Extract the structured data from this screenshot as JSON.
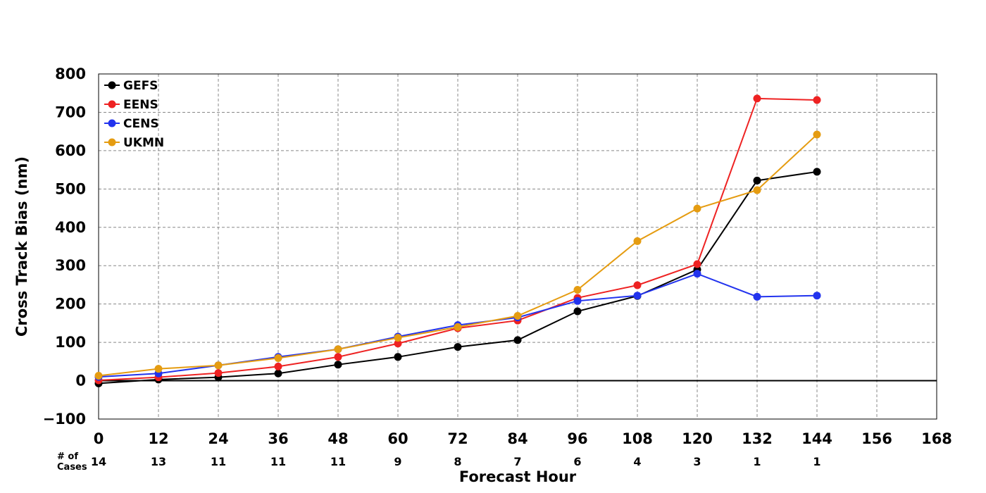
{
  "chart_data": {
    "type": "line",
    "title": "",
    "xlabel": "Forecast Hour",
    "ylabel": "Cross Track Bias (nm)",
    "xlim": [
      0,
      168
    ],
    "ylim": [
      -100,
      800
    ],
    "x_ticks": [
      0,
      12,
      24,
      36,
      48,
      60,
      72,
      84,
      96,
      108,
      120,
      132,
      144,
      156,
      168
    ],
    "y_ticks": [
      -100,
      0,
      100,
      200,
      300,
      400,
      500,
      600,
      700,
      800
    ],
    "y_tick_labels": [
      "−100",
      "0",
      "100",
      "200",
      "300",
      "400",
      "500",
      "600",
      "700",
      "800"
    ],
    "grid": true,
    "legend_position": "top-left",
    "x": [
      0,
      12,
      24,
      36,
      48,
      60,
      72,
      84,
      96,
      108,
      120,
      132,
      144
    ],
    "series": [
      {
        "name": "GEFS",
        "color": "#000000",
        "values": [
          -7,
          3,
          9,
          19,
          42,
          62,
          88,
          106,
          181,
          221,
          290,
          522,
          545
        ]
      },
      {
        "name": "EENS",
        "color": "#ee2222",
        "values": [
          1,
          9,
          20,
          37,
          62,
          97,
          137,
          157,
          216,
          249,
          304,
          736,
          732
        ]
      },
      {
        "name": "CENS",
        "color": "#2233ee",
        "values": [
          10,
          19,
          40,
          62,
          82,
          115,
          145,
          165,
          208,
          222,
          279,
          219,
          222
        ]
      },
      {
        "name": "UKMN",
        "color": "#e59c11",
        "values": [
          13,
          31,
          40,
          59,
          82,
          112,
          140,
          169,
          237,
          364,
          449,
          497,
          642
        ]
      }
    ],
    "cases_label": "# of Cases",
    "cases_label_lines": [
      "# of",
      "Cases"
    ],
    "cases": [
      14,
      13,
      11,
      11,
      11,
      9,
      8,
      7,
      6,
      4,
      3,
      1,
      1
    ]
  }
}
